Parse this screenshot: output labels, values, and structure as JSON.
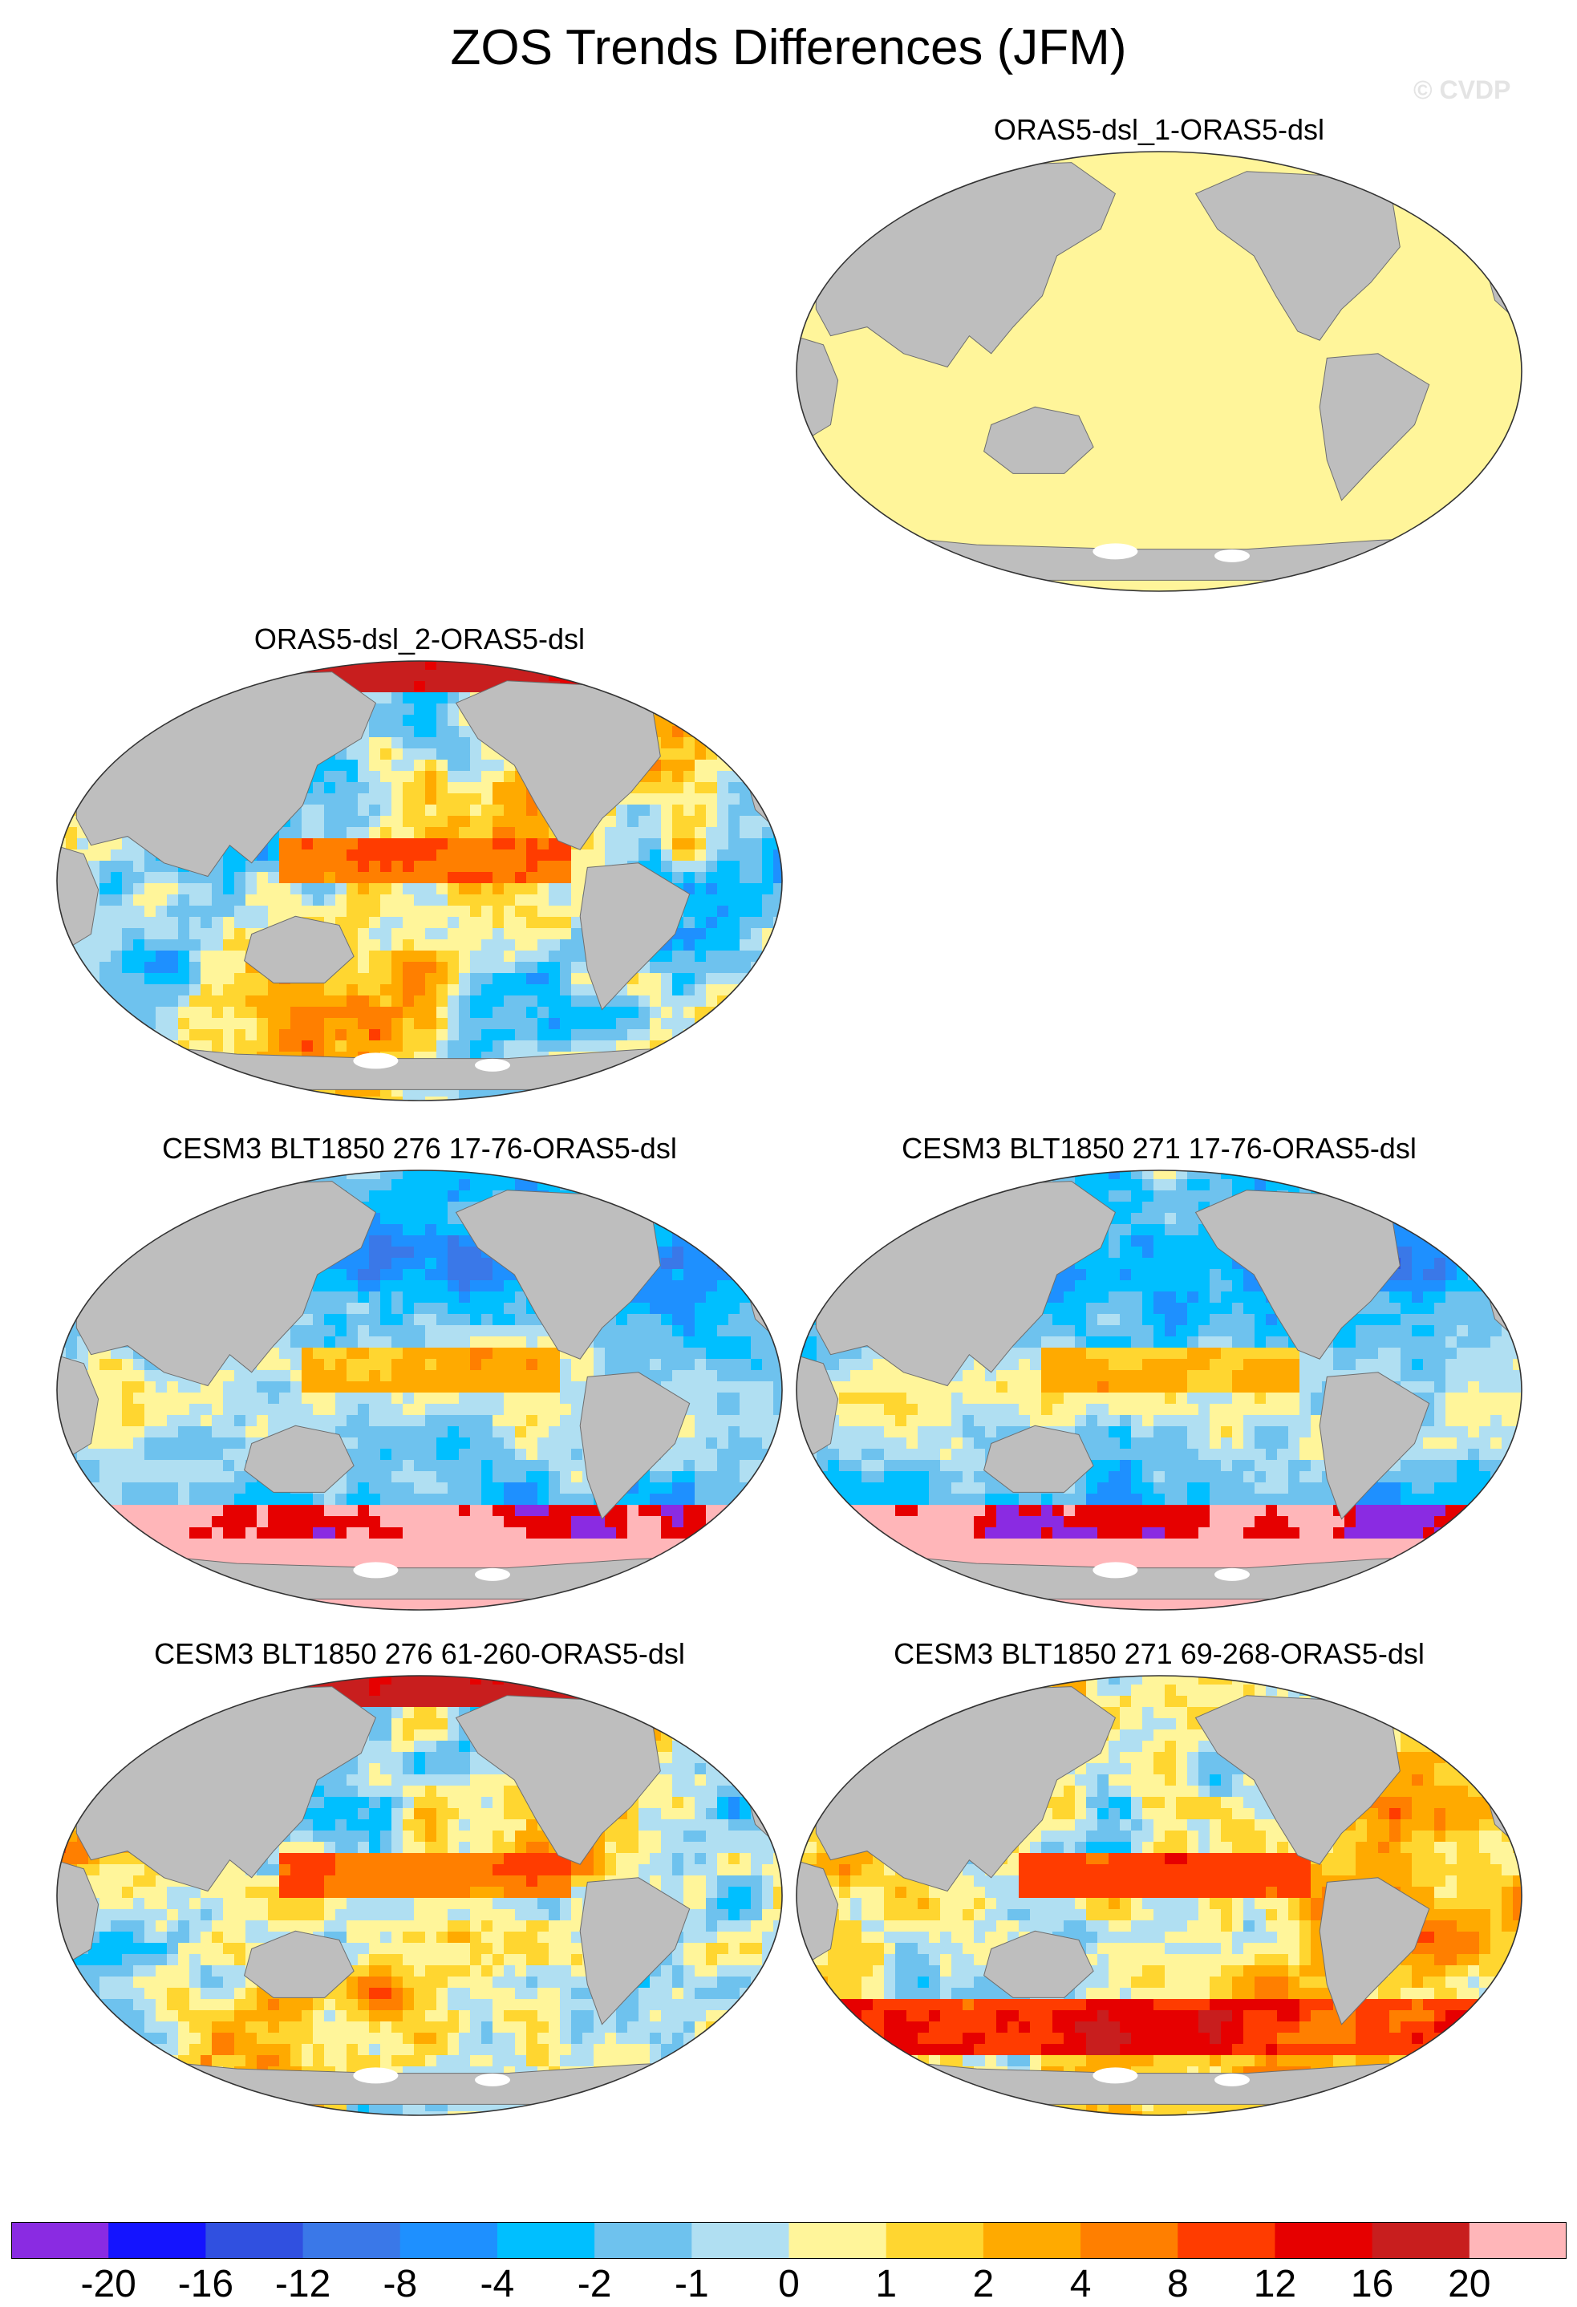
{
  "figure": {
    "title": "ZOS Trends Differences (JFM)",
    "credit": "© CVDP"
  },
  "panels": [
    {
      "title": "ORAS5-dsl_1-ORAS5-dsl",
      "field": "uniform"
    },
    {
      "title": "ORAS5-dsl_2-ORAS5-dsl",
      "field": "mixed"
    },
    {
      "title": "CESM3 BLT1850 276 17-76-ORAS5-dsl",
      "field": "cool"
    },
    {
      "title": "CESM3 BLT1850 271 17-76-ORAS5-dsl",
      "field": "cool"
    },
    {
      "title": "CESM3 BLT1850 276 61-260-ORAS5-dsl",
      "field": "mixed"
    },
    {
      "title": "CESM3 BLT1850 271 69-268-ORAS5-dsl",
      "field": "warm"
    }
  ],
  "colorbar": {
    "labels": [
      "-20",
      "-16",
      "-12",
      "-8",
      "-4",
      "-2",
      "-1",
      "0",
      "1",
      "2",
      "4",
      "8",
      "12",
      "16",
      "20"
    ],
    "colors": [
      "#8a2be2",
      "#1414ff",
      "#3050e0",
      "#3a78e8",
      "#1e90ff",
      "#00bfff",
      "#6ec2ee",
      "#b0dff2",
      "#fff59a",
      "#ffd630",
      "#ffaa00",
      "#ff7f00",
      "#ff3c00",
      "#e60000",
      "#c81e1e",
      "#ffb6b9"
    ]
  },
  "colors": {
    "land": "#bebebe",
    "ice": "#ffffff"
  }
}
